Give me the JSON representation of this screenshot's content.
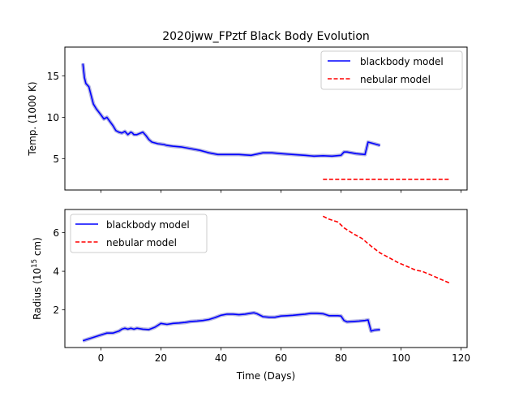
{
  "chart_data": [
    {
      "type": "line",
      "title": "2020jww_FPztf Black Body Evolution",
      "xlabel": "",
      "ylabel": "Temp. (1000 K)",
      "xlim": [
        -12,
        122
      ],
      "ylim": [
        1.2,
        18.5
      ],
      "xticks": [
        0,
        20,
        40,
        60,
        80,
        100,
        120
      ],
      "xtick_labels_visible": false,
      "yticks": [
        5,
        10,
        15
      ],
      "ytick_labels": [
        "5",
        "10",
        "15"
      ],
      "legend_position": "top-right",
      "series": [
        {
          "name": "blackbody model",
          "style": "solid",
          "color": "#0000ff",
          "band_color": "#9b9bd8",
          "x": [
            -6,
            -5.5,
            -5,
            -4,
            -3,
            -2.5,
            -1.5,
            0,
            1,
            2,
            3,
            4,
            5,
            6,
            7,
            8,
            9,
            10,
            10.5,
            11,
            12,
            14,
            15,
            16,
            17,
            19,
            21,
            22,
            24,
            27,
            30,
            33,
            36,
            39,
            42,
            46,
            50,
            54,
            57,
            60,
            64,
            68,
            71,
            74,
            77,
            80,
            81,
            82,
            85,
            88,
            89,
            91,
            93
          ],
          "y": [
            16.5,
            14.8,
            14.1,
            13.7,
            12.3,
            11.6,
            11.0,
            10.3,
            9.8,
            10.0,
            9.5,
            9.0,
            8.4,
            8.2,
            8.1,
            8.3,
            7.9,
            8.2,
            8.1,
            7.9,
            7.9,
            8.2,
            7.8,
            7.3,
            7.0,
            6.8,
            6.7,
            6.6,
            6.5,
            6.4,
            6.2,
            6.0,
            5.7,
            5.5,
            5.5,
            5.5,
            5.4,
            5.7,
            5.7,
            5.6,
            5.5,
            5.4,
            5.3,
            5.35,
            5.3,
            5.4,
            5.8,
            5.8,
            5.6,
            5.5,
            7.0,
            6.8,
            6.6
          ]
        },
        {
          "name": "nebular model",
          "style": "dashed",
          "color": "#ff0000",
          "x": [
            74,
            116
          ],
          "y": [
            2.5,
            2.5
          ]
        }
      ]
    },
    {
      "type": "line",
      "title": "",
      "xlabel": "Time (Days)",
      "ylabel": "Radius (10^15 cm)",
      "ylabel_base": "Radius (10",
      "ylabel_exp": "15",
      "ylabel_suffix": " cm)",
      "xlim": [
        -12,
        122
      ],
      "ylim": [
        0.05,
        7.2
      ],
      "xticks": [
        0,
        20,
        40,
        60,
        80,
        100,
        120
      ],
      "xtick_labels": [
        "0",
        "20",
        "40",
        "60",
        "80",
        "100",
        "120"
      ],
      "yticks": [
        2,
        4,
        6
      ],
      "ytick_labels": [
        "2",
        "4",
        "6"
      ],
      "legend_position": "top-left",
      "series": [
        {
          "name": "blackbody model",
          "style": "solid",
          "color": "#0000ff",
          "band_color": "#9b9bd8",
          "x": [
            -6,
            -4,
            -2,
            0,
            2,
            4,
            6,
            7,
            8,
            9,
            10,
            11,
            12,
            14,
            16,
            18,
            20,
            22,
            24,
            26,
            28,
            30,
            32,
            34,
            36,
            38,
            40,
            42,
            44,
            46,
            48,
            50,
            51,
            52,
            54,
            56,
            58,
            60,
            62,
            64,
            66,
            68,
            70,
            72,
            74,
            76,
            78,
            79,
            80,
            81,
            82,
            84,
            86,
            88,
            89,
            90,
            91,
            93
          ],
          "y": [
            0.4,
            0.5,
            0.6,
            0.7,
            0.8,
            0.8,
            0.9,
            1.0,
            1.05,
            1.0,
            1.05,
            1.0,
            1.05,
            1.0,
            0.98,
            1.1,
            1.3,
            1.25,
            1.3,
            1.32,
            1.35,
            1.4,
            1.42,
            1.45,
            1.5,
            1.6,
            1.72,
            1.78,
            1.78,
            1.75,
            1.78,
            1.83,
            1.85,
            1.8,
            1.65,
            1.62,
            1.62,
            1.68,
            1.7,
            1.72,
            1.75,
            1.78,
            1.82,
            1.82,
            1.8,
            1.7,
            1.7,
            1.7,
            1.68,
            1.45,
            1.38,
            1.4,
            1.42,
            1.45,
            1.48,
            0.9,
            0.95,
            0.98
          ]
        },
        {
          "name": "nebular model",
          "style": "dashed",
          "color": "#ff0000",
          "x": [
            74,
            76,
            79,
            81,
            84,
            87,
            90,
            93,
            96,
            99,
            102,
            105,
            107,
            110,
            113,
            116
          ],
          "y": [
            6.85,
            6.7,
            6.55,
            6.25,
            5.95,
            5.7,
            5.3,
            4.95,
            4.7,
            4.45,
            4.25,
            4.05,
            4.0,
            3.8,
            3.6,
            3.4
          ]
        }
      ]
    }
  ]
}
